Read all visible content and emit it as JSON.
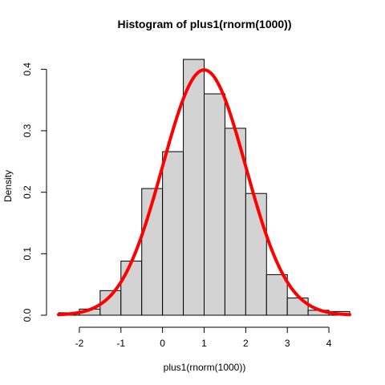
{
  "chart_data": {
    "type": "bar",
    "title": "Histogram of plus1(rnorm(1000))",
    "xlabel": "plus1(rnorm(1000))",
    "ylabel": "Density",
    "bin_edges": [
      -2.5,
      -2.0,
      -1.5,
      -1.0,
      -0.5,
      0.0,
      0.5,
      1.0,
      1.5,
      2.0,
      2.5,
      3.0,
      3.5,
      4.0,
      4.5
    ],
    "values": [
      0.004,
      0.01,
      0.04,
      0.088,
      0.206,
      0.266,
      0.416,
      0.36,
      0.304,
      0.198,
      0.066,
      0.028,
      0.008,
      0.006
    ],
    "xlim": [
      -2.5,
      4.5
    ],
    "ylim": [
      0,
      0.42
    ],
    "x_ticks": [
      -2,
      -1,
      0,
      1,
      2,
      3,
      4
    ],
    "x_tick_labels": [
      "-2",
      "-1",
      "0",
      "1",
      "2",
      "3",
      "4"
    ],
    "y_ticks": [
      0.0,
      0.1,
      0.2,
      0.3,
      0.4
    ],
    "y_tick_labels": [
      "0.0",
      "0.1",
      "0.2",
      "0.3",
      "0.4"
    ],
    "bar_fill": "#d3d3d3",
    "curve": {
      "type": "normal-density",
      "mean": 1,
      "sd": 1,
      "x_range": [
        -2.5,
        4.5
      ],
      "color": "#ff0000"
    },
    "grid": false,
    "legend": "none"
  }
}
